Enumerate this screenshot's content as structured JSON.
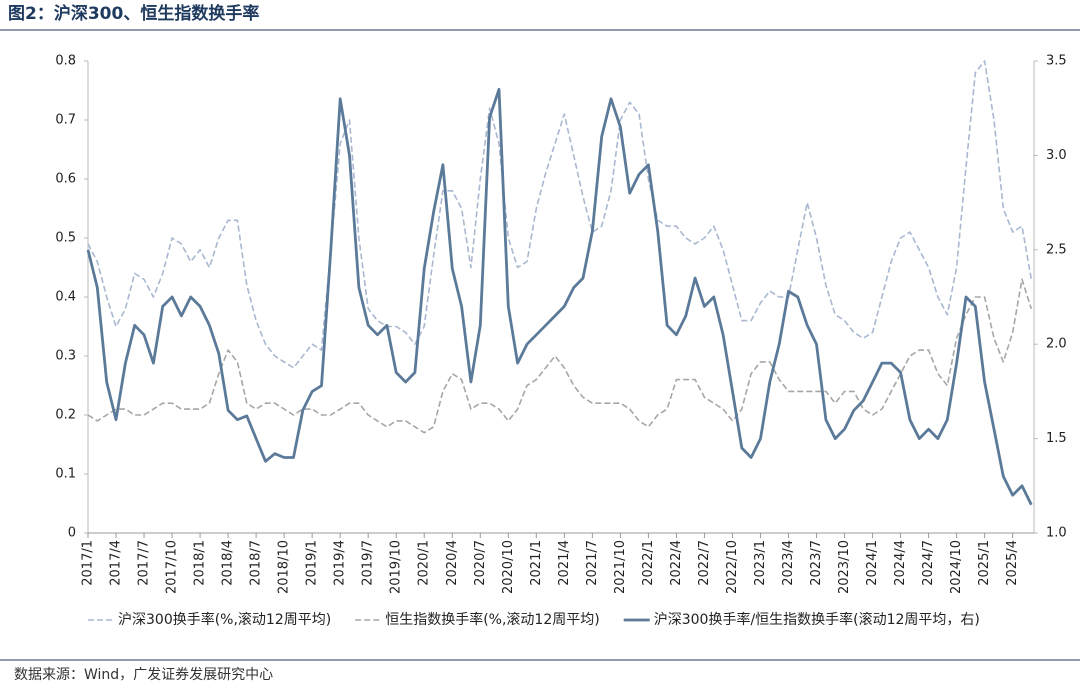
{
  "chart_data": {
    "type": "line",
    "title": "图2：沪深300、恒生指数换手率",
    "source": "数据来源：Wind，广发证券发展研究中心",
    "categories": [
      "2017/1",
      null,
      null,
      "2017/4",
      null,
      null,
      "2017/7",
      null,
      null,
      "2017/10",
      null,
      null,
      "2018/1",
      null,
      null,
      "2018/4",
      null,
      null,
      "2018/7",
      null,
      null,
      "2018/10",
      null,
      null,
      "2019/1",
      null,
      null,
      "2019/4",
      null,
      null,
      "2019/7",
      null,
      null,
      "2019/10",
      null,
      null,
      "2020/1",
      null,
      null,
      "2020/4",
      null,
      null,
      "2020/7",
      null,
      null,
      "2020/10",
      null,
      null,
      "2021/1",
      null,
      null,
      "2021/4",
      null,
      null,
      "2021/7",
      null,
      null,
      "2021/10",
      null,
      null,
      "2022/1",
      null,
      null,
      "2022/4",
      null,
      null,
      "2022/7",
      null,
      null,
      "2022/10",
      null,
      null,
      "2023/1",
      null,
      null,
      "2023/4",
      null,
      null,
      "2023/7",
      null,
      null,
      "2023/10",
      null,
      null,
      "2024/1",
      null,
      null,
      "2024/4",
      null,
      null,
      "2024/7",
      null,
      null,
      "2024/10",
      null,
      null,
      "2025/1",
      null,
      null,
      "2025/4",
      null,
      null
    ],
    "series": [
      {
        "name": "沪深300换手率(%,滚动12周平均)",
        "color": "#a9b8d0",
        "dash": true,
        "values": [
          0.49,
          0.46,
          0.4,
          0.35,
          0.38,
          0.44,
          0.43,
          0.4,
          0.44,
          0.5,
          0.49,
          0.46,
          0.48,
          0.45,
          0.5,
          0.53,
          0.53,
          0.42,
          0.36,
          0.32,
          0.3,
          0.29,
          0.28,
          0.3,
          0.32,
          0.31,
          0.48,
          0.66,
          0.7,
          0.5,
          0.38,
          0.36,
          0.35,
          0.35,
          0.34,
          0.32,
          0.35,
          0.47,
          0.58,
          0.58,
          0.55,
          0.45,
          0.6,
          0.72,
          0.66,
          0.5,
          0.45,
          0.46,
          0.55,
          0.61,
          0.66,
          0.71,
          0.64,
          0.57,
          0.51,
          0.52,
          0.58,
          0.7,
          0.73,
          0.71,
          0.6,
          0.53,
          0.52,
          0.52,
          0.5,
          0.49,
          0.5,
          0.52,
          0.48,
          0.42,
          0.36,
          0.36,
          0.39,
          0.41,
          0.4,
          0.4,
          0.48,
          0.56,
          0.5,
          0.42,
          0.37,
          0.36,
          0.34,
          0.33,
          0.34,
          0.4,
          0.46,
          0.5,
          0.51,
          0.48,
          0.45,
          0.4,
          0.37,
          0.45,
          0.62,
          0.78,
          0.8,
          0.7,
          0.55,
          0.51,
          0.52,
          0.43
        ]
      },
      {
        "name": "恒生指数换手率(%,滚动12周平均)",
        "color": "#a6a6a6",
        "dash": true,
        "values": [
          0.2,
          0.19,
          0.2,
          0.21,
          0.21,
          0.2,
          0.2,
          0.21,
          0.22,
          0.22,
          0.21,
          0.21,
          0.21,
          0.22,
          0.27,
          0.31,
          0.29,
          0.22,
          0.21,
          0.22,
          0.22,
          0.21,
          0.2,
          0.21,
          0.21,
          0.2,
          0.2,
          0.21,
          0.22,
          0.22,
          0.2,
          0.19,
          0.18,
          0.19,
          0.19,
          0.18,
          0.17,
          0.18,
          0.24,
          0.27,
          0.26,
          0.21,
          0.22,
          0.22,
          0.21,
          0.19,
          0.21,
          0.25,
          0.26,
          0.28,
          0.3,
          0.28,
          0.25,
          0.23,
          0.22,
          0.22,
          0.22,
          0.22,
          0.21,
          0.19,
          0.18,
          0.2,
          0.21,
          0.26,
          0.26,
          0.26,
          0.23,
          0.22,
          0.21,
          0.19,
          0.21,
          0.27,
          0.29,
          0.29,
          0.26,
          0.24,
          0.24,
          0.24,
          0.24,
          0.24,
          0.22,
          0.24,
          0.24,
          0.21,
          0.2,
          0.21,
          0.24,
          0.27,
          0.3,
          0.31,
          0.31,
          0.27,
          0.25,
          0.33,
          0.37,
          0.4,
          0.4,
          0.33,
          0.29,
          0.34,
          0.43,
          0.38
        ]
      },
      {
        "name": "沪深300换手率/恒生指数换手率(滚动12周平均，右)",
        "color": "#5b7a99",
        "dash": false,
        "axis": "y2",
        "values": [
          2.5,
          2.3,
          1.8,
          1.6,
          1.9,
          2.1,
          2.05,
          1.9,
          2.2,
          2.25,
          2.15,
          2.25,
          2.2,
          2.1,
          1.95,
          1.65,
          1.6,
          1.62,
          1.5,
          1.38,
          1.42,
          1.4,
          1.4,
          1.65,
          1.75,
          1.78,
          2.5,
          3.3,
          3.0,
          2.3,
          2.1,
          2.05,
          2.1,
          1.85,
          1.8,
          1.85,
          2.4,
          2.7,
          2.95,
          2.4,
          2.2,
          1.8,
          2.1,
          3.2,
          3.35,
          2.2,
          1.9,
          2.0,
          2.05,
          2.1,
          2.15,
          2.2,
          2.3,
          2.35,
          2.6,
          3.1,
          3.3,
          3.15,
          2.8,
          2.9,
          2.95,
          2.6,
          2.1,
          2.05,
          2.15,
          2.35,
          2.2,
          2.25,
          2.05,
          1.75,
          1.45,
          1.4,
          1.5,
          1.8,
          2.0,
          2.28,
          2.25,
          2.1,
          2.0,
          1.6,
          1.5,
          1.55,
          1.65,
          1.7,
          1.8,
          1.9,
          1.9,
          1.85,
          1.6,
          1.5,
          1.55,
          1.5,
          1.6,
          1.9,
          2.25,
          2.2,
          1.8,
          1.55,
          1.3,
          1.2,
          1.25,
          1.15
        ]
      }
    ],
    "ylim": [
      0,
      0.8
    ],
    "yticks": [
      0,
      0.1,
      0.2,
      0.3,
      0.4,
      0.5,
      0.6,
      0.7,
      0.8
    ],
    "y2lim": [
      1.0,
      3.5
    ],
    "y2ticks": [
      {
        "value": 1.0,
        "label": "1.0"
      },
      1.5,
      {
        "value": 2.0,
        "label": "2.0"
      },
      2.5,
      {
        "value": 3.0,
        "label": "3.0"
      },
      3.5
    ],
    "legend": "bottom"
  }
}
